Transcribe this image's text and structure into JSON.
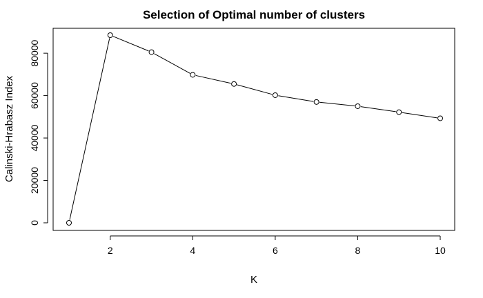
{
  "chart_data": {
    "type": "line",
    "title": "Selection of Optimal number of clusters",
    "xlabel": "K",
    "ylabel": "Calinski-Hrabasz Index",
    "x": [
      1,
      2,
      3,
      4,
      5,
      6,
      7,
      8,
      9,
      10
    ],
    "y": [
      0,
      88500,
      80500,
      69800,
      65500,
      60200,
      57000,
      55000,
      52200,
      49300
    ],
    "x_ticks": [
      2,
      4,
      6,
      8,
      10
    ],
    "y_ticks": [
      0,
      20000,
      40000,
      60000,
      80000
    ],
    "xlim": [
      1,
      10
    ],
    "ylim": [
      0,
      88500
    ],
    "markers": "open-circle",
    "grid": false,
    "legend": "none",
    "colors": {
      "line": "#000000",
      "marker_fill": "#ffffff",
      "background": "#ffffff"
    }
  }
}
